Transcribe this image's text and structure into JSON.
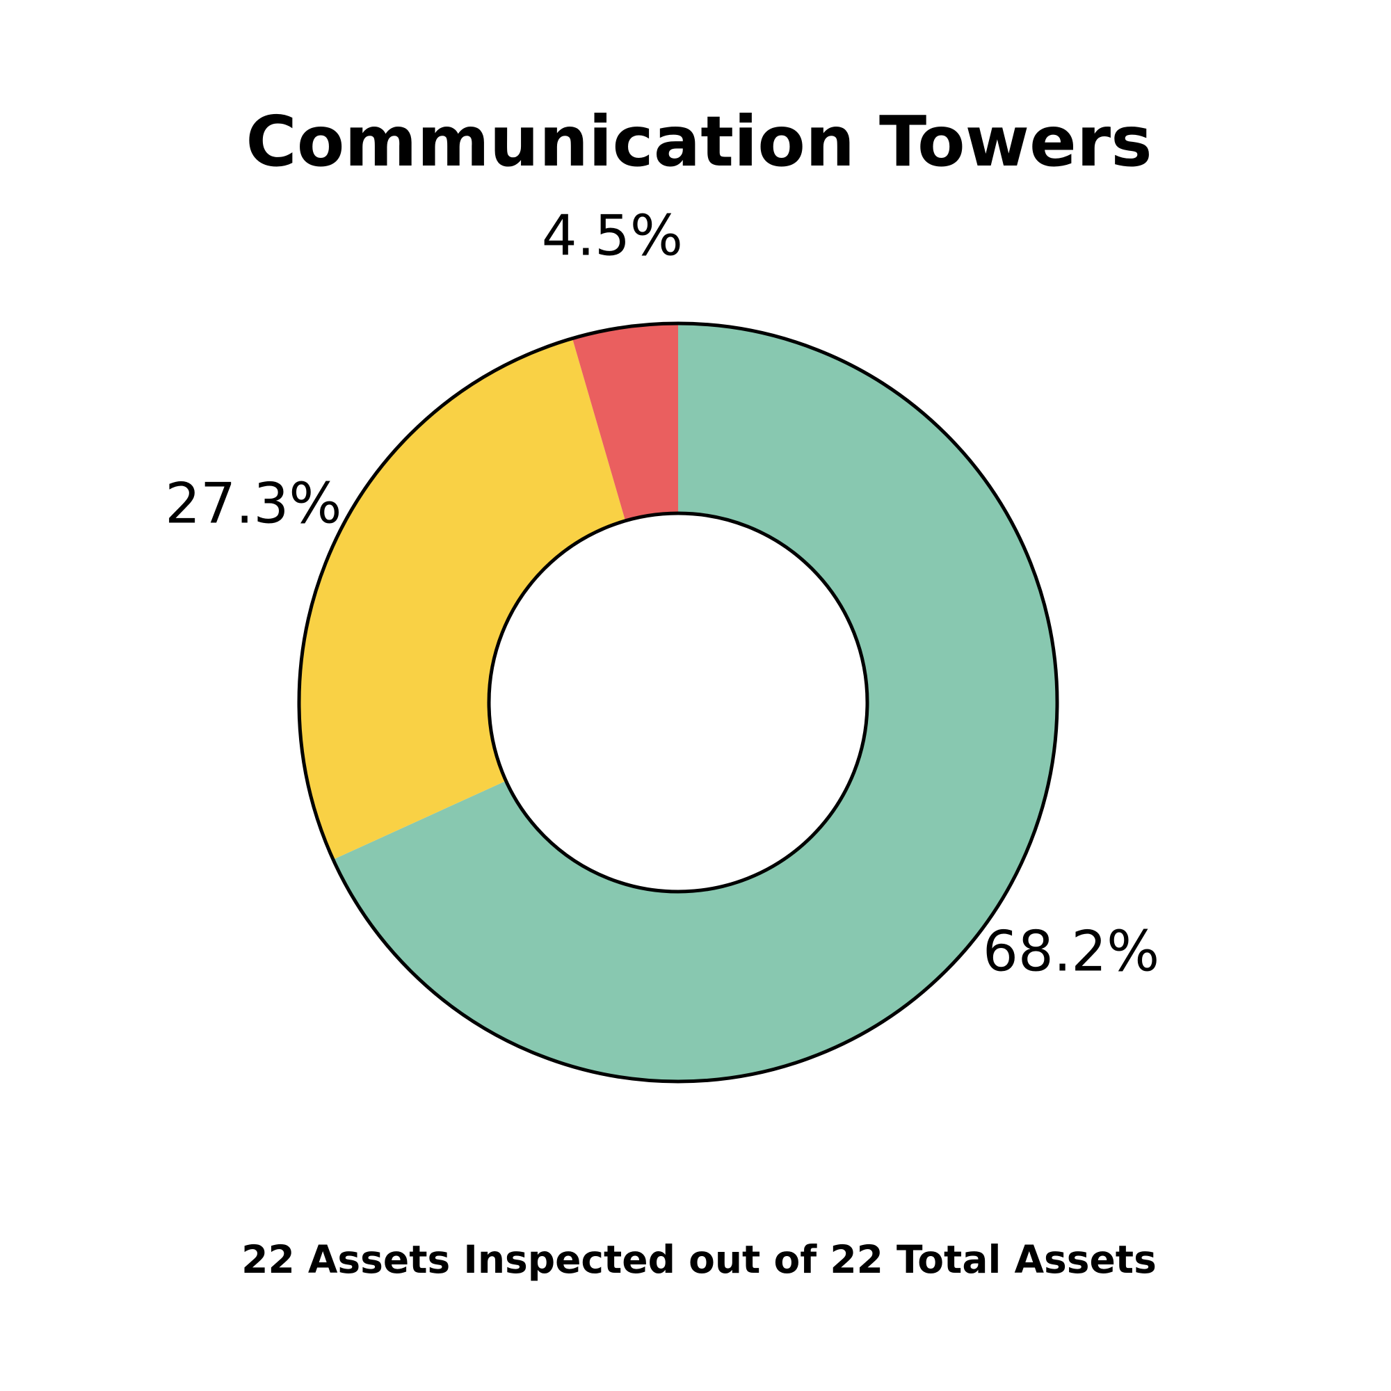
{
  "chart_data": {
    "type": "pie",
    "variant": "donut",
    "title": "Communication Towers",
    "footer": "22 Assets Inspected out of 22 Total Assets",
    "slices": [
      {
        "value": 68.2,
        "label": "68.2%",
        "color": "#88c8b0"
      },
      {
        "value": 27.3,
        "label": "27.3%",
        "color": "#f9d145"
      },
      {
        "value": 4.5,
        "label": "4.5%",
        "color": "#ea5f5f"
      }
    ],
    "start_angle": "12-o'clock",
    "direction": "clockwise",
    "legend": "none"
  }
}
